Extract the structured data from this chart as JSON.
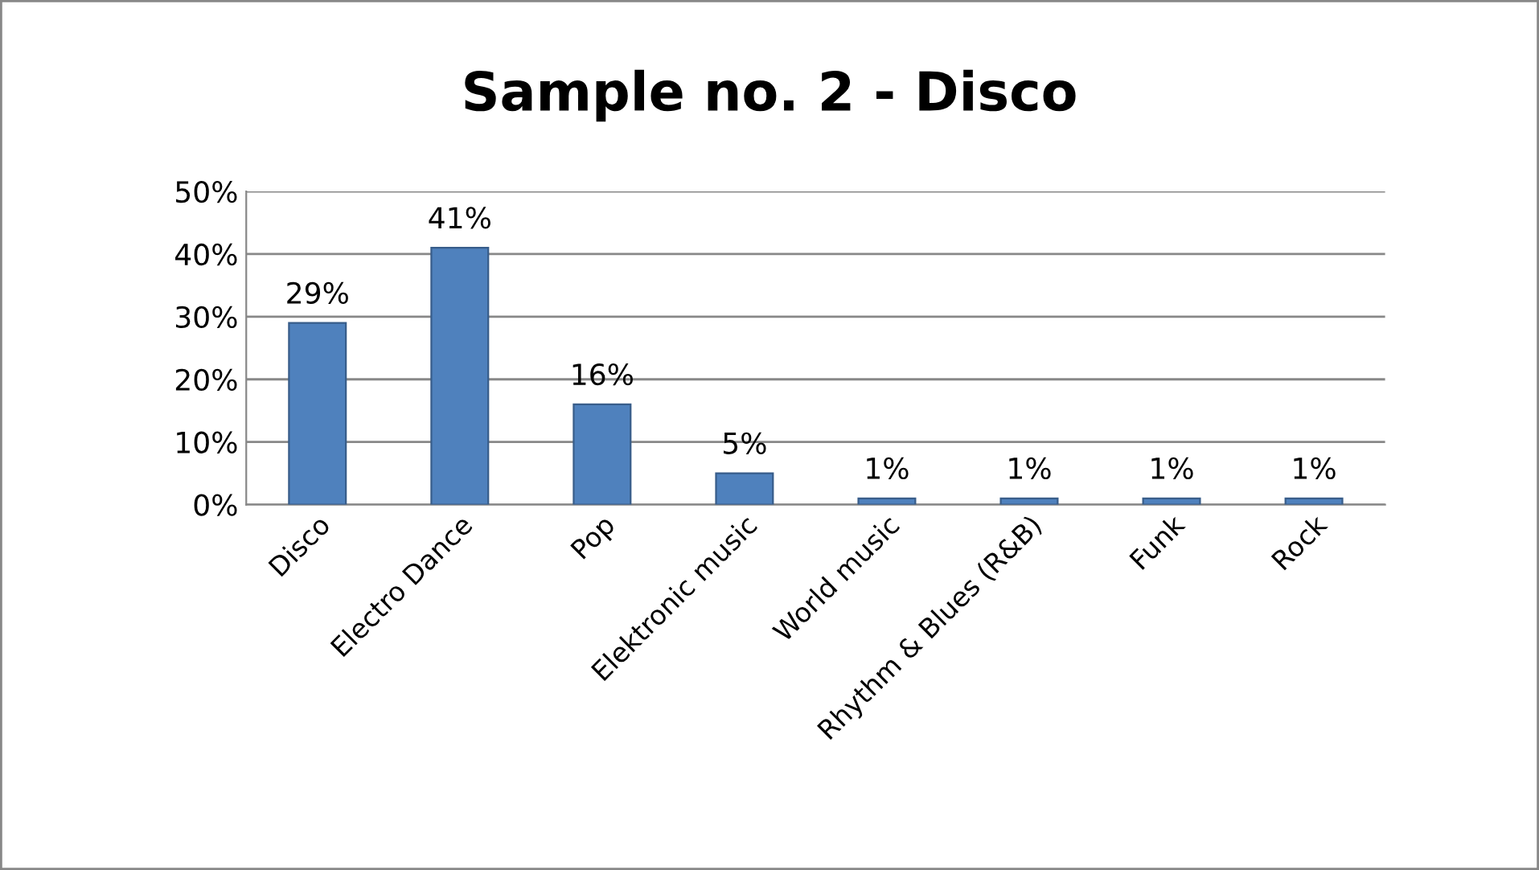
{
  "chart_data": {
    "type": "bar",
    "title": "Sample no. 2 - Disco",
    "categories": [
      "Disco",
      "Electro Dance",
      "Pop",
      "Elektronic music",
      "World music",
      "Rhythm & Blues (R&B)",
      "Funk",
      "Rock"
    ],
    "values": [
      29,
      41,
      16,
      5,
      1,
      1,
      1,
      1
    ],
    "value_labels": [
      "29%",
      "41%",
      "16%",
      "5%",
      "1%",
      "1%",
      "1%",
      "1%"
    ],
    "color": "#4f81bd",
    "ylim": [
      0,
      50
    ],
    "yticks": [
      {
        "value": 0,
        "label": "0%"
      },
      {
        "value": 10,
        "label": "10%"
      },
      {
        "value": 20,
        "label": "20%"
      },
      {
        "value": 30,
        "label": "30%"
      },
      {
        "value": 40,
        "label": "40%"
      },
      {
        "value": 50,
        "label": "50%"
      }
    ],
    "grid": "y",
    "legend": false
  }
}
